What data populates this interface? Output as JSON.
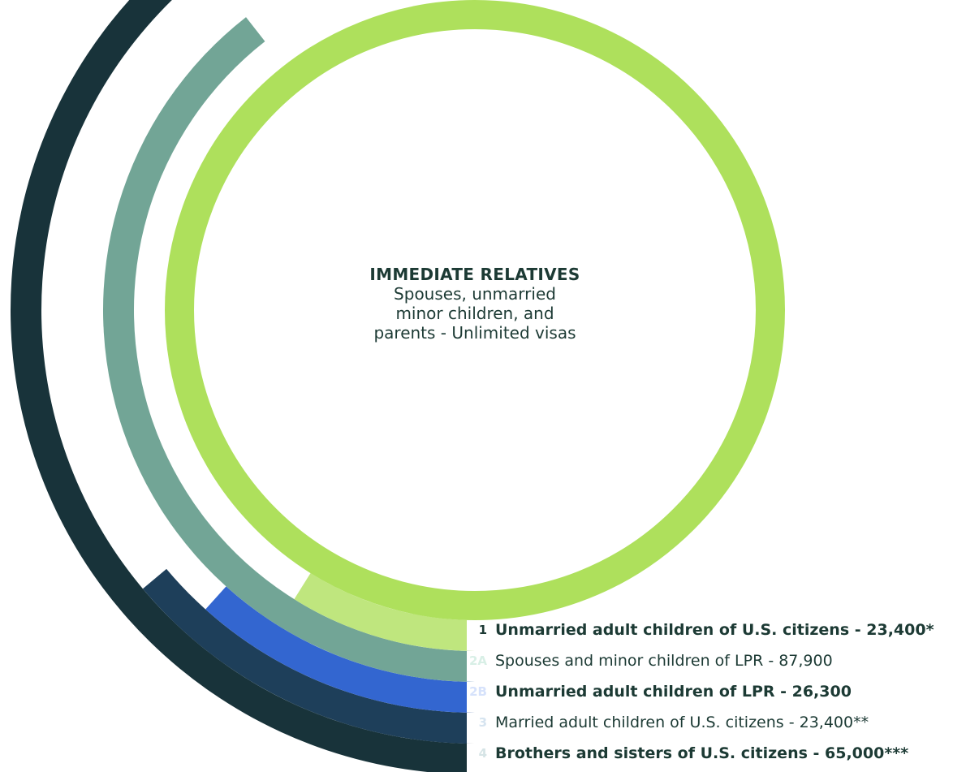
{
  "chart_data": {
    "type": "radial-bar",
    "center": {
      "title": "IMMEDIATE RELATIVES",
      "description_lines": [
        "Spouses, unmarried",
        "minor children, and",
        "parents - Unlimited visas"
      ],
      "color": "#aee05c"
    },
    "categories": [
      {
        "code": "1",
        "label": "Unmarried adult children of U.S. citizens - 23,400*",
        "value": 23400,
        "bold": true,
        "color": "#bfe67e",
        "code_color": "#1c3a34"
      },
      {
        "code": "2A",
        "label": "Spouses and minor children of LPR - 87,900",
        "value": 87900,
        "bold": false,
        "color": "#72a596",
        "code_color": "#d8efe6"
      },
      {
        "code": "2B",
        "label": "Unmarried adult children of LPR - 26,300",
        "value": 26300,
        "bold": true,
        "color": "#3366d0",
        "code_color": "#d6e2fb"
      },
      {
        "code": "3",
        "label": "Married adult children of U.S. citizens - 23,400**",
        "value": 23400,
        "bold": false,
        "color": "#1e3f5a",
        "code_color": "#d6e4f0"
      },
      {
        "code": "4",
        "label": "Brothers and sisters of U.S. citizens - 65,000***",
        "value": 65000,
        "bold": true,
        "color": "#18333a",
        "code_color": "#d6e4e6"
      }
    ]
  }
}
